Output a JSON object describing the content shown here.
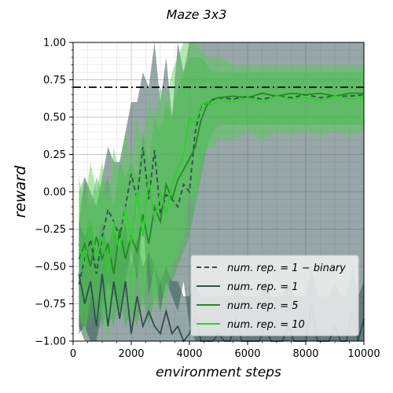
{
  "chart_data": {
    "type": "line",
    "title": "Maze 3x3",
    "xlabel": "environment steps",
    "ylabel": "reward",
    "xlim": [
      0,
      10000
    ],
    "ylim": [
      -1.0,
      1.0
    ],
    "grid": true,
    "legend_position": "lower-right",
    "x_ticks": [
      0,
      2000,
      4000,
      6000,
      8000,
      10000
    ],
    "x_tick_labels": [
      "0",
      "2000",
      "4000",
      "6000",
      "8000",
      "10000"
    ],
    "y_ticks": [
      -1.0,
      -0.75,
      -0.5,
      -0.25,
      0.0,
      0.25,
      0.5,
      0.75,
      1.0
    ],
    "y_tick_labels": [
      "−1.00",
      "−0.75",
      "−0.50",
      "−0.25",
      "0.00",
      "0.25",
      "0.50",
      "0.75",
      "1.00"
    ],
    "reference_line": {
      "y": 0.7,
      "style": "dash-dot",
      "color": "#000000"
    },
    "series": [
      {
        "name": "num. rep. = 1 − binary",
        "line_style": "dashed",
        "color": "#2f4f4f",
        "band_color": "#2f4f4f",
        "x": [
          200,
          400,
          600,
          800,
          1000,
          1200,
          1400,
          1600,
          1800,
          2000,
          2200,
          2400,
          2600,
          2800,
          3000,
          3200,
          3400,
          3600,
          3800,
          4000,
          4200,
          4400,
          4600,
          5000,
          5500,
          6000,
          6500,
          7000,
          7500,
          8000,
          8500,
          9000,
          9500,
          10000
        ],
        "values": [
          -0.62,
          -0.45,
          -0.32,
          -0.55,
          -0.3,
          -0.12,
          -0.2,
          -0.3,
          -0.1,
          0.12,
          -0.05,
          0.3,
          -0.05,
          0.28,
          -0.15,
          -0.02,
          -0.05,
          -0.1,
          0.05,
          0.0,
          0.4,
          0.57,
          0.6,
          0.63,
          0.62,
          0.64,
          0.62,
          0.64,
          0.63,
          0.65,
          0.63,
          0.64,
          0.64,
          0.65
        ],
        "upper": [
          -0.2,
          0.1,
          0.0,
          -0.1,
          0.1,
          0.3,
          0.2,
          0.2,
          0.4,
          0.6,
          0.6,
          0.8,
          0.7,
          1.0,
          0.6,
          0.9,
          0.5,
          1.0,
          0.8,
          1.0,
          1.0,
          1.0,
          1.0,
          1.0,
          1.0,
          1.0,
          1.0,
          1.0,
          1.0,
          1.0,
          1.0,
          1.0,
          1.0,
          1.0
        ],
        "lower": [
          -0.95,
          -0.9,
          -1.0,
          -1.0,
          -0.8,
          -0.6,
          -0.7,
          -0.8,
          -0.6,
          -0.4,
          -0.6,
          -0.2,
          -0.7,
          -0.5,
          -0.8,
          -0.6,
          -0.7,
          -0.8,
          -0.6,
          -0.9,
          -1.0,
          -1.0,
          -1.0,
          -1.0,
          -1.0,
          -1.0,
          -1.0,
          -1.0,
          -1.0,
          -1.0,
          -1.0,
          -1.0,
          -1.0,
          -1.0
        ]
      },
      {
        "name": "num. rep. = 1",
        "line_style": "solid",
        "color": "#2f4f4f",
        "band_color": "#2f4f4f",
        "x": [
          200,
          400,
          600,
          800,
          1000,
          1200,
          1400,
          1600,
          1800,
          2000,
          2200,
          2400,
          2600,
          2800,
          3000,
          3200,
          3400,
          3600,
          3800,
          4000,
          4200,
          4400,
          4600,
          4800,
          5000,
          5200,
          5400,
          5600,
          5800,
          6000,
          6200,
          6400,
          6600,
          6800,
          7000,
          7200,
          7400,
          7600,
          7800,
          8000,
          8200,
          8400,
          8600,
          8800,
          9000,
          9200,
          9400,
          9600,
          9800,
          10000
        ],
        "values": [
          -0.55,
          -0.75,
          -0.6,
          -0.9,
          -0.55,
          -0.9,
          -0.6,
          -0.85,
          -0.6,
          -0.95,
          -0.7,
          -0.9,
          -0.8,
          -0.9,
          -0.95,
          -0.8,
          -0.95,
          -0.9,
          -1.0,
          -0.95,
          -0.85,
          -1.0,
          -1.0,
          -1.0,
          -0.95,
          -1.0,
          -1.0,
          -0.85,
          -1.0,
          -1.0,
          -1.0,
          -1.0,
          -0.9,
          -1.0,
          -1.0,
          -1.0,
          -0.9,
          -1.0,
          -1.0,
          -1.0,
          -0.75,
          -1.0,
          -1.0,
          -1.0,
          -0.9,
          -1.0,
          -1.0,
          -0.8,
          -1.0,
          -0.85
        ],
        "upper": [
          -0.2,
          -0.3,
          -0.2,
          -0.4,
          -0.2,
          -0.4,
          -0.2,
          -0.4,
          -0.2,
          -0.5,
          -0.3,
          -0.5,
          -0.4,
          -0.5,
          -0.6,
          -0.5,
          -0.6,
          -0.6,
          -0.7,
          -0.7,
          -0.6,
          -0.7,
          -0.7,
          -0.7,
          -0.7,
          -0.7,
          -0.7,
          -0.6,
          -0.7,
          -0.7,
          -0.7,
          -0.7,
          -0.6,
          -0.7,
          -0.7,
          -0.7,
          -0.6,
          -0.7,
          -0.7,
          -0.7,
          -0.5,
          -0.7,
          -0.7,
          -0.7,
          -0.6,
          -0.7,
          -0.7,
          -0.5,
          -0.7,
          -0.6
        ],
        "lower": [
          -0.9,
          -1.0,
          -1.0,
          -1.0,
          -1.0,
          -1.0,
          -1.0,
          -1.0,
          -1.0,
          -1.0,
          -1.0,
          -1.0,
          -1.0,
          -1.0,
          -1.0,
          -1.0,
          -1.0,
          -1.0,
          -1.0,
          -1.0,
          -1.0,
          -1.0,
          -1.0,
          -1.0,
          -1.0,
          -1.0,
          -1.0,
          -1.0,
          -1.0,
          -1.0,
          -1.0,
          -1.0,
          -1.0,
          -1.0,
          -1.0,
          -1.0,
          -1.0,
          -1.0,
          -1.0,
          -1.0,
          -1.0,
          -1.0,
          -1.0,
          -1.0,
          -1.0,
          -1.0,
          -1.0,
          -1.0,
          -1.0,
          -1.0
        ]
      },
      {
        "name": "num. rep. = 5",
        "line_style": "solid",
        "color": "#228b22",
        "band_color": "#3cb043",
        "x": [
          200,
          400,
          600,
          800,
          1000,
          1200,
          1400,
          1600,
          1800,
          2000,
          2200,
          2400,
          2600,
          2800,
          3000,
          3200,
          3400,
          3600,
          3800,
          4000,
          4200,
          4400,
          4600,
          4800,
          5000,
          5500,
          6000,
          6500,
          7000,
          7500,
          8000,
          8500,
          9000,
          9500,
          10000
        ],
        "values": [
          -0.45,
          -0.35,
          -0.5,
          -0.3,
          -0.45,
          -0.35,
          -0.55,
          -0.25,
          -0.45,
          -0.3,
          -0.4,
          -0.15,
          -0.35,
          -0.1,
          -0.2,
          0.05,
          -0.05,
          0.08,
          0.15,
          0.22,
          0.3,
          0.48,
          0.58,
          0.62,
          0.63,
          0.64,
          0.63,
          0.66,
          0.64,
          0.66,
          0.65,
          0.66,
          0.64,
          0.66,
          0.66
        ],
        "upper": [
          0.0,
          0.1,
          -0.1,
          0.1,
          0.0,
          0.1,
          -0.1,
          0.2,
          0.1,
          0.2,
          0.1,
          0.4,
          0.2,
          0.5,
          0.4,
          0.6,
          0.5,
          0.7,
          0.8,
          0.9,
          0.9,
          0.9,
          0.85,
          0.8,
          0.8,
          0.8,
          0.8,
          0.8,
          0.8,
          0.8,
          0.8,
          0.8,
          0.8,
          0.8,
          0.8
        ],
        "lower": [
          -0.9,
          -0.8,
          -0.9,
          -0.7,
          -0.9,
          -0.8,
          -0.9,
          -0.7,
          -0.9,
          -0.8,
          -0.9,
          -0.7,
          -0.9,
          -0.7,
          -0.8,
          -0.5,
          -0.6,
          -0.5,
          -0.4,
          -0.3,
          -0.1,
          0.1,
          0.3,
          0.4,
          0.45,
          0.45,
          0.45,
          0.45,
          0.45,
          0.45,
          0.45,
          0.45,
          0.45,
          0.45,
          0.45
        ]
      },
      {
        "name": "num. rep. = 10",
        "line_style": "solid",
        "color": "#32cd32",
        "band_color": "#4fd04f",
        "x": [
          200,
          400,
          600,
          800,
          1000,
          1200,
          1400,
          1600,
          1800,
          2000,
          2200,
          2400,
          2600,
          2800,
          3000,
          3200,
          3400,
          3600,
          3800,
          4000,
          4200,
          4400,
          4600,
          4800,
          5000,
          5500,
          6000,
          6500,
          7000,
          7500,
          8000,
          8500,
          9000,
          9500,
          10000
        ],
        "values": [
          -0.35,
          -0.5,
          -0.2,
          -0.45,
          -0.3,
          -0.55,
          -0.2,
          -0.4,
          -0.1,
          -0.35,
          0.0,
          -0.3,
          0.1,
          -0.2,
          0.0,
          -0.15,
          0.05,
          0.15,
          0.25,
          0.5,
          0.45,
          0.58,
          0.6,
          0.58,
          0.62,
          0.6,
          0.63,
          0.6,
          0.64,
          0.62,
          0.63,
          0.61,
          0.64,
          0.62,
          0.63
        ],
        "upper": [
          0.1,
          -0.1,
          0.2,
          0.0,
          0.2,
          -0.1,
          0.3,
          0.1,
          0.4,
          0.2,
          0.5,
          0.3,
          0.6,
          0.5,
          0.7,
          0.6,
          0.8,
          0.9,
          1.0,
          1.0,
          1.0,
          0.95,
          0.9,
          0.9,
          0.9,
          0.85,
          0.85,
          0.85,
          0.85,
          0.85,
          0.85,
          0.85,
          0.85,
          0.85,
          0.85
        ],
        "lower": [
          -0.8,
          -1.0,
          -0.7,
          -0.9,
          -0.8,
          -1.0,
          -0.7,
          -0.9,
          -0.6,
          -0.9,
          -0.5,
          -0.8,
          -0.4,
          -0.8,
          -0.6,
          -0.8,
          -0.5,
          -0.4,
          -0.3,
          0.0,
          -0.1,
          0.2,
          0.3,
          0.3,
          0.35,
          0.35,
          0.4,
          0.35,
          0.4,
          0.38,
          0.4,
          0.38,
          0.4,
          0.38,
          0.4
        ]
      }
    ]
  }
}
